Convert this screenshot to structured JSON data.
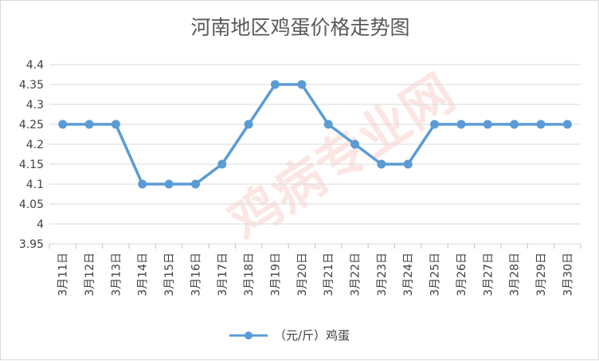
{
  "chart_data": {
    "type": "line",
    "title": "河南地区鸡蛋价格走势图",
    "xlabel": "",
    "ylabel": "",
    "categories": [
      "3月11日",
      "3月12日",
      "3月13日",
      "3月14日",
      "3月15日",
      "3月16日",
      "3月17日",
      "3月18日",
      "3月19日",
      "3月20日",
      "3月21日",
      "3月22日",
      "3月23日",
      "3月24日",
      "3月25日",
      "3月26日",
      "3月27日",
      "3月28日",
      "3月29日",
      "3月30日"
    ],
    "series": [
      {
        "name": "（元/斤）鸡蛋",
        "values": [
          4.25,
          4.25,
          4.25,
          4.1,
          4.1,
          4.1,
          4.15,
          4.25,
          4.35,
          4.35,
          4.25,
          4.2,
          4.15,
          4.15,
          4.25,
          4.25,
          4.25,
          4.25,
          4.25,
          4.25
        ],
        "color": "#5b9bd5"
      }
    ],
    "yticks": [
      "3.95",
      "4",
      "4.05",
      "4.1",
      "4.15",
      "4.2",
      "4.25",
      "4.3",
      "4.35",
      "4.4"
    ],
    "ylim": [
      3.95,
      4.4
    ],
    "grid": true,
    "legend_position": "bottom",
    "watermark": "鸡病专业网 www.jbzyw.com"
  }
}
